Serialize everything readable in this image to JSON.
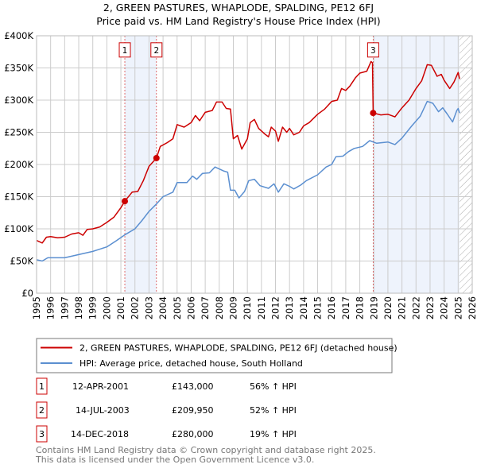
{
  "title_line1": "2, GREEN PASTURES, WHAPLODE, SPALDING, PE12 6FJ",
  "title_line2": "Price paid vs. HM Land Registry's House Price Index (HPI)",
  "colors": {
    "property": "#cc0000",
    "hpi": "#5b8fd0",
    "shade": "#eef3fc",
    "grid": "#cccccc"
  },
  "chart_data": {
    "type": "line",
    "xlim": [
      1995,
      2026
    ],
    "ylim": [
      0,
      400000
    ],
    "y_ticks": [
      0,
      50000,
      100000,
      150000,
      200000,
      250000,
      300000,
      350000,
      400000
    ],
    "y_tick_labels": [
      "£0",
      "£50K",
      "£100K",
      "£150K",
      "£200K",
      "£250K",
      "£300K",
      "£350K",
      "£400K"
    ],
    "x_ticks": [
      "1995",
      "1996",
      "1997",
      "1998",
      "1999",
      "2000",
      "2001",
      "2002",
      "2003",
      "2004",
      "2005",
      "2006",
      "2007",
      "2008",
      "2009",
      "2010",
      "2011",
      "2012",
      "2013",
      "2014",
      "2015",
      "2016",
      "2017",
      "2018",
      "2019",
      "2020",
      "2021",
      "2022",
      "2023",
      "2024",
      "2025",
      "2026"
    ],
    "grid": true,
    "legend_placement": "below",
    "shaded_ranges": [
      [
        2001.28,
        2003.53
      ],
      [
        2018.95,
        2025.1
      ]
    ],
    "forecast_hatch_from": 2025.1,
    "series": [
      {
        "name": "2, GREEN PASTURES, WHAPLODE, SPALDING, PE12 6FJ (detached house)",
        "points": [
          [
            1995,
            82
          ],
          [
            1995.4,
            78
          ],
          [
            1995.7,
            87
          ],
          [
            1996,
            88
          ],
          [
            1996.5,
            86
          ],
          [
            1997,
            87
          ],
          [
            1997.5,
            92
          ],
          [
            1998,
            94
          ],
          [
            1998.3,
            90
          ],
          [
            1998.6,
            99
          ],
          [
            1999,
            100
          ],
          [
            1999.5,
            103
          ],
          [
            2000,
            110
          ],
          [
            2000.5,
            118
          ],
          [
            2001,
            133
          ],
          [
            2001.28,
            143
          ],
          [
            2001.8,
            157
          ],
          [
            2002.2,
            158
          ],
          [
            2002.6,
            175
          ],
          [
            2003,
            197
          ],
          [
            2003.53,
            210
          ],
          [
            2003.8,
            228
          ],
          [
            2004.3,
            234
          ],
          [
            2004.7,
            240
          ],
          [
            2005,
            262
          ],
          [
            2005.5,
            258
          ],
          [
            2006,
            265
          ],
          [
            2006.3,
            276
          ],
          [
            2006.6,
            268
          ],
          [
            2007,
            281
          ],
          [
            2007.5,
            284
          ],
          [
            2007.8,
            297
          ],
          [
            2008.2,
            297
          ],
          [
            2008.5,
            287
          ],
          [
            2008.8,
            286
          ],
          [
            2009,
            240
          ],
          [
            2009.3,
            245
          ],
          [
            2009.6,
            224
          ],
          [
            2010,
            240
          ],
          [
            2010.2,
            265
          ],
          [
            2010.5,
            270
          ],
          [
            2010.8,
            256
          ],
          [
            2011.2,
            248
          ],
          [
            2011.5,
            243
          ],
          [
            2011.7,
            258
          ],
          [
            2012,
            252
          ],
          [
            2012.2,
            236
          ],
          [
            2012.5,
            258
          ],
          [
            2012.8,
            250
          ],
          [
            2013,
            256
          ],
          [
            2013.3,
            246
          ],
          [
            2013.7,
            250
          ],
          [
            2014,
            260
          ],
          [
            2014.4,
            265
          ],
          [
            2015,
            278
          ],
          [
            2015.5,
            286
          ],
          [
            2016,
            298
          ],
          [
            2016.4,
            300
          ],
          [
            2016.7,
            318
          ],
          [
            2017,
            315
          ],
          [
            2017.3,
            322
          ],
          [
            2017.7,
            335
          ],
          [
            2018,
            342
          ],
          [
            2018.5,
            345
          ],
          [
            2018.8,
            360
          ],
          [
            2018.9,
            358
          ],
          [
            2018.95,
            280
          ],
          [
            2019.5,
            277
          ],
          [
            2020,
            278
          ],
          [
            2020.5,
            274
          ],
          [
            2021,
            288
          ],
          [
            2021.5,
            300
          ],
          [
            2022,
            318
          ],
          [
            2022.4,
            330
          ],
          [
            2022.8,
            355
          ],
          [
            2023.1,
            354
          ],
          [
            2023.5,
            337
          ],
          [
            2023.8,
            340
          ],
          [
            2024,
            331
          ],
          [
            2024.4,
            318
          ],
          [
            2024.7,
            328
          ],
          [
            2025,
            343
          ],
          [
            2025.1,
            333
          ]
        ]
      },
      {
        "name": "HPI: Average price, detached house, South Holland",
        "points": [
          [
            1995,
            52
          ],
          [
            1995.4,
            50
          ],
          [
            1995.8,
            55
          ],
          [
            1997,
            55
          ],
          [
            1998,
            60
          ],
          [
            1999,
            65
          ],
          [
            2000,
            72
          ],
          [
            2000.7,
            82
          ],
          [
            2001.3,
            91
          ],
          [
            2002,
            100
          ],
          [
            2002.5,
            113
          ],
          [
            2003,
            127
          ],
          [
            2003.5,
            138
          ],
          [
            2004,
            150
          ],
          [
            2004.7,
            157
          ],
          [
            2005,
            172
          ],
          [
            2005.7,
            172
          ],
          [
            2006.1,
            182
          ],
          [
            2006.4,
            177
          ],
          [
            2006.8,
            186
          ],
          [
            2007.3,
            187
          ],
          [
            2007.7,
            196
          ],
          [
            2008.3,
            190
          ],
          [
            2008.6,
            188
          ],
          [
            2008.8,
            160
          ],
          [
            2009.1,
            160
          ],
          [
            2009.4,
            148
          ],
          [
            2009.8,
            158
          ],
          [
            2010.1,
            175
          ],
          [
            2010.5,
            177
          ],
          [
            2010.9,
            167
          ],
          [
            2011.5,
            163
          ],
          [
            2011.9,
            170
          ],
          [
            2012.2,
            157
          ],
          [
            2012.6,
            170
          ],
          [
            2013,
            166
          ],
          [
            2013.3,
            162
          ],
          [
            2013.8,
            168
          ],
          [
            2014.2,
            175
          ],
          [
            2015,
            184
          ],
          [
            2015.6,
            196
          ],
          [
            2016,
            200
          ],
          [
            2016.3,
            212
          ],
          [
            2016.8,
            213
          ],
          [
            2017.2,
            220
          ],
          [
            2017.6,
            225
          ],
          [
            2018.2,
            228
          ],
          [
            2018.7,
            237
          ],
          [
            2019.2,
            233
          ],
          [
            2020,
            235
          ],
          [
            2020.5,
            231
          ],
          [
            2021,
            241
          ],
          [
            2021.7,
            260
          ],
          [
            2022.3,
            275
          ],
          [
            2022.8,
            298
          ],
          [
            2023.2,
            295
          ],
          [
            2023.6,
            282
          ],
          [
            2023.9,
            288
          ],
          [
            2024.2,
            279
          ],
          [
            2024.6,
            266
          ],
          [
            2024.9,
            284
          ],
          [
            2025,
            287
          ],
          [
            2025.1,
            280
          ]
        ]
      }
    ],
    "y_unit_multiplier": 1000,
    "sales": [
      {
        "label": "1",
        "x": 2001.28,
        "y": 143000
      },
      {
        "label": "2",
        "x": 2003.53,
        "y": 209950
      },
      {
        "label": "3",
        "x": 2018.95,
        "y": 280000
      }
    ]
  },
  "legend": [
    "2, GREEN PASTURES, WHAPLODE, SPALDING, PE12 6FJ (detached house)",
    "HPI: Average price, detached house, South Holland"
  ],
  "transactions": [
    {
      "num": "1",
      "date": "12-APR-2001",
      "price": "£143,000",
      "hpi": "56% ↑ HPI"
    },
    {
      "num": "2",
      "date": "14-JUL-2003",
      "price": "£209,950",
      "hpi": "52% ↑ HPI"
    },
    {
      "num": "3",
      "date": "14-DEC-2018",
      "price": "£280,000",
      "hpi": "19% ↑ HPI"
    }
  ],
  "footer_line1": "Contains HM Land Registry data © Crown copyright and database right 2025.",
  "footer_line2": "This data is licensed under the Open Government Licence v3.0."
}
